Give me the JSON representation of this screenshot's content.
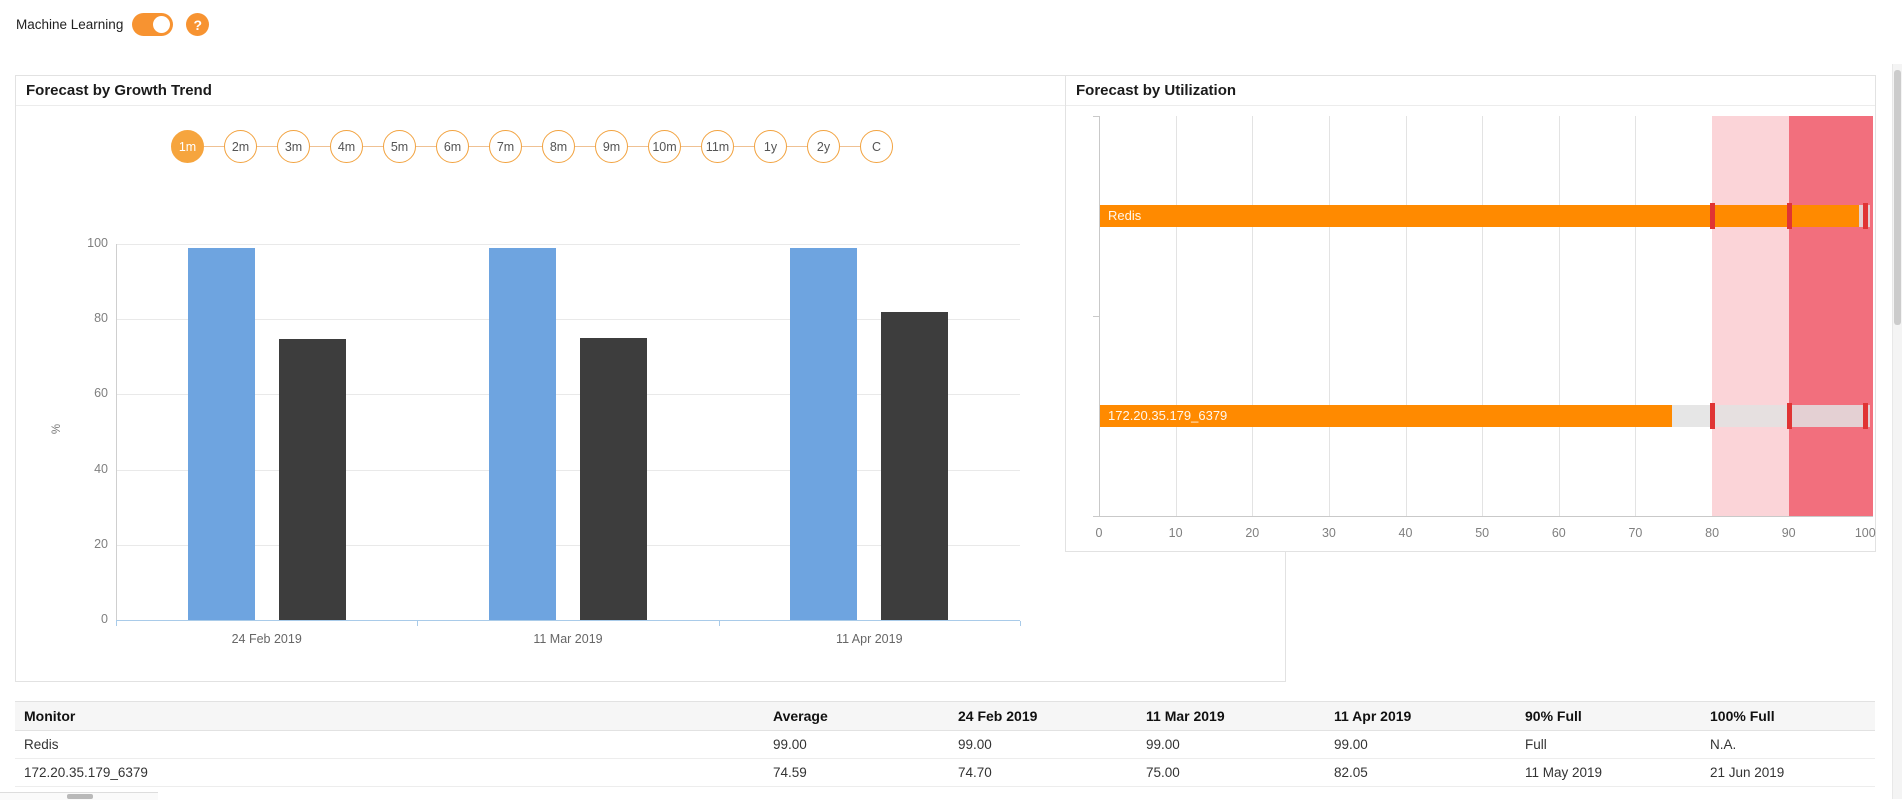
{
  "header": {
    "ml_label": "Machine Learning",
    "ml_toggle_on": true,
    "help_glyph": "?"
  },
  "growth_trend": {
    "title": "Forecast by Growth Trend",
    "ranges": [
      "1m",
      "2m",
      "3m",
      "4m",
      "5m",
      "6m",
      "7m",
      "8m",
      "9m",
      "10m",
      "11m",
      "1y",
      "2y",
      "C"
    ],
    "selected_range": "1m"
  },
  "utilization": {
    "title": "Forecast by Utilization"
  },
  "table": {
    "headers": [
      "Monitor",
      "Average",
      "24 Feb 2019",
      "11 Mar 2019",
      "11 Apr 2019",
      "90% Full",
      "100% Full"
    ],
    "rows": [
      [
        "Redis",
        "99.00",
        "99.00",
        "99.00",
        "99.00",
        "Full",
        "N.A."
      ],
      [
        "172.20.35.179_6379",
        "74.59",
        "74.70",
        "75.00",
        "82.05",
        "11 May 2019",
        "21 Jun 2019"
      ]
    ]
  },
  "colors": {
    "accent_orange": "#f6a53e",
    "bar_blue": "#6ea4e0",
    "bar_dark": "#3d3d3d",
    "bar_orange": "#ff8a00",
    "zone_light_pink": "#fbd4d8",
    "zone_red": "#f26f7d",
    "marker_red": "#e03434"
  },
  "chart_data": [
    {
      "type": "bar",
      "title": "Forecast by Growth Trend",
      "categories": [
        "24 Feb 2019",
        "11 Mar 2019",
        "11 Apr 2019"
      ],
      "series": [
        {
          "name": "Redis",
          "color": "#6ea4e0",
          "values": [
            99.0,
            99.0,
            99.0
          ]
        },
        {
          "name": "172.20.35.179_6379",
          "color": "#3d3d3d",
          "values": [
            74.7,
            75.0,
            82.05
          ]
        }
      ],
      "xlabel": "",
      "ylabel": "%",
      "ylim": [
        0,
        100
      ],
      "yticks": [
        0,
        20,
        40,
        60,
        80,
        100
      ],
      "grid": true,
      "legend_position": "none"
    },
    {
      "type": "bar-horizontal",
      "title": "Forecast by Utilization",
      "categories": [
        "Redis",
        "172.20.35.179_6379"
      ],
      "values": [
        99.0,
        74.59
      ],
      "bar_color": "#ff8a00",
      "xlim": [
        0,
        101
      ],
      "xticks": [
        0,
        10,
        20,
        30,
        40,
        50,
        60,
        70,
        80,
        90,
        100
      ],
      "threshold_markers": [
        80,
        90,
        100
      ],
      "marker_color": "#e03434",
      "zones": [
        {
          "from": 80,
          "to": 90,
          "color": "#fbd4d8"
        },
        {
          "from": 90,
          "to": 101,
          "color": "#f26f7d"
        }
      ],
      "grid": true
    }
  ]
}
